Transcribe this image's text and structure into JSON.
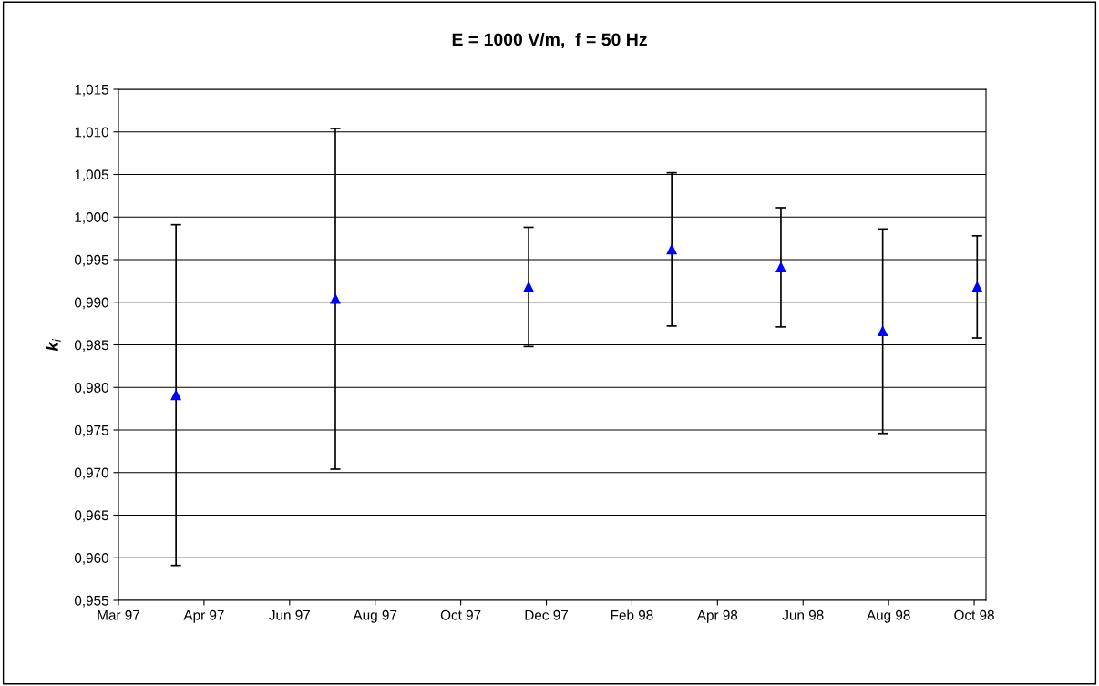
{
  "chart_data": {
    "type": "scatter",
    "title": "E = 1000 V/m,  f = 50 Hz",
    "ylabel": "k$_{i}$",
    "x": [
      "1997-04-09",
      "1997-07-26",
      "1997-12-04",
      "1998-03-11",
      "1998-05-24",
      "1998-08-01",
      "1998-10-04"
    ],
    "series": [
      {
        "color": "#0000ff",
        "values": [
          0.9791,
          0.9904,
          0.9918,
          0.9962,
          0.9941,
          0.9866,
          0.9918
        ],
        "errors": [
          0.02,
          0.02,
          0.007,
          0.009,
          0.007,
          0.012,
          0.006
        ]
      }
    ],
    "marker": "triangle",
    "grid": "y",
    "legend": false,
    "xlim": [
      "1997-03-01",
      "1998-10-10"
    ],
    "xticks": [
      {
        "value": "1997-03-01",
        "label": "Mar 97"
      },
      {
        "value": "1997-04-28",
        "label": "Apr 97"
      },
      {
        "value": "1997-06-25",
        "label": "Jun 97"
      },
      {
        "value": "1997-08-22",
        "label": "Aug 97"
      },
      {
        "value": "1997-10-19",
        "label": "Oct 97"
      },
      {
        "value": "1997-12-16",
        "label": "Dec 97"
      },
      {
        "value": "1998-02-12",
        "label": "Feb 98"
      },
      {
        "value": "1998-04-11",
        "label": "Apr 98"
      },
      {
        "value": "1998-06-08",
        "label": "Jun 98"
      },
      {
        "value": "1998-08-05",
        "label": "Aug 98"
      },
      {
        "value": "1998-10-02",
        "label": "Oct 98"
      }
    ],
    "ylim": [
      0.955,
      1.015
    ],
    "yticks": [
      {
        "value": 0.955,
        "label": "0,955"
      },
      {
        "value": 0.96,
        "label": "0,960"
      },
      {
        "value": 0.965,
        "label": "0,965"
      },
      {
        "value": 0.97,
        "label": "0,970"
      },
      {
        "value": 0.975,
        "label": "0,975"
      },
      {
        "value": 0.98,
        "label": "0,980"
      },
      {
        "value": 0.985,
        "label": "0,985"
      },
      {
        "value": 0.99,
        "label": "0,990"
      },
      {
        "value": 0.995,
        "label": "0,995"
      },
      {
        "value": 1.0,
        "label": "1,000"
      },
      {
        "value": 1.005,
        "label": "1,005"
      },
      {
        "value": 1.01,
        "label": "1,010"
      },
      {
        "value": 1.015,
        "label": "1,015"
      }
    ]
  }
}
